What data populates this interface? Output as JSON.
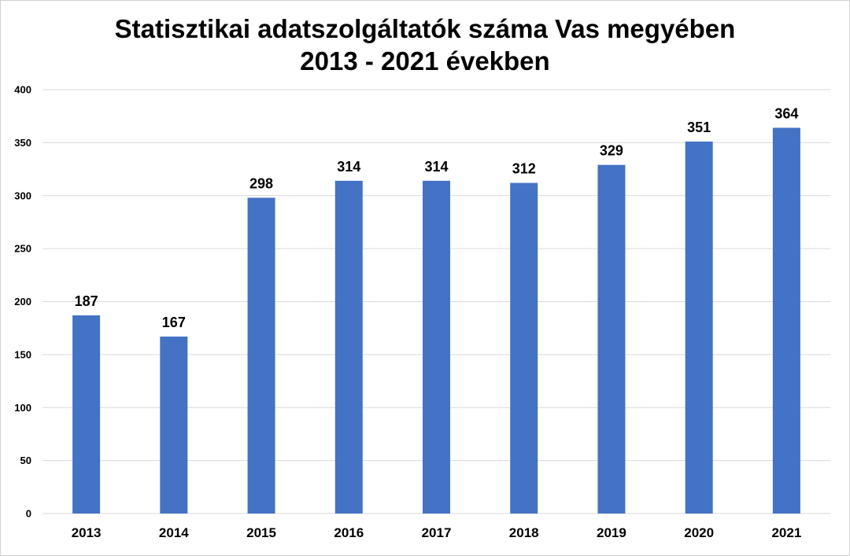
{
  "chart_data": {
    "type": "bar",
    "title": "Statisztikai adatszolgáltatók száma Vas megyében",
    "subtitle": "2013 - 2021 években",
    "categories": [
      "2013",
      "2014",
      "2015",
      "2016",
      "2017",
      "2018",
      "2019",
      "2020",
      "2021"
    ],
    "values": [
      187,
      167,
      298,
      314,
      314,
      312,
      329,
      351,
      364
    ],
    "yticks": [
      0,
      50,
      100,
      150,
      200,
      250,
      300,
      350,
      400
    ],
    "ylim": [
      0,
      400
    ],
    "grid": true,
    "legend": "none",
    "data_labels": true,
    "bar_color": "#4472C4",
    "grid_color": "#d9d9d9",
    "xlabel": "",
    "ylabel": ""
  }
}
